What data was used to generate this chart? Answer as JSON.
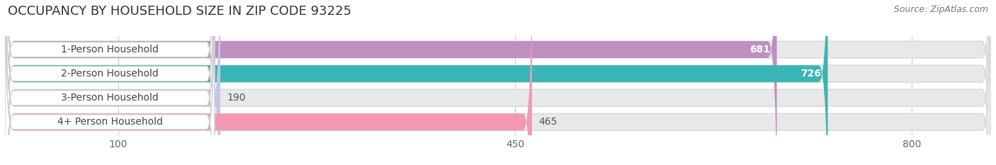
{
  "title": "OCCUPANCY BY HOUSEHOLD SIZE IN ZIP CODE 93225",
  "source": "Source: ZipAtlas.com",
  "categories": [
    "1-Person Household",
    "2-Person Household",
    "3-Person Household",
    "4+ Person Household"
  ],
  "values": [
    681,
    726,
    190,
    465
  ],
  "bar_colors": [
    "#bf8fbf",
    "#3ab5b5",
    "#c0c8e8",
    "#f598b4"
  ],
  "label_colors": [
    "white",
    "white",
    "black",
    "black"
  ],
  "x_ticks": [
    100,
    450,
    800
  ],
  "data_max": 870,
  "background_color": "#ffffff",
  "bar_bg_color": "#e8e8e8",
  "label_bg_color": "#ffffff",
  "title_fontsize": 13,
  "source_fontsize": 9,
  "bar_label_fontsize": 10,
  "value_fontsize": 10,
  "tick_fontsize": 10
}
